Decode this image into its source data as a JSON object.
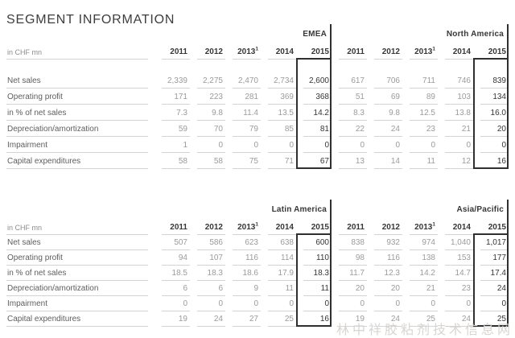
{
  "page_title": "SEGMENT INFORMATION",
  "unit_label": "in CHF mn",
  "years": [
    "2011",
    "2012",
    "2013",
    "2014",
    "2015"
  ],
  "footnote_year": "2013",
  "footnote_marker": "1",
  "highlighted_year": "2015",
  "row_labels": [
    "Net sales",
    "Operating profit",
    "in % of net sales",
    "Depreciation/amortization",
    "Impairment",
    "Capital expenditures"
  ],
  "tables": [
    {
      "halves": [
        {
          "region": "EMEA",
          "rows": [
            [
              "2,339",
              "2,275",
              "2,470",
              "2,734",
              "2,600"
            ],
            [
              "171",
              "223",
              "281",
              "369",
              "368"
            ],
            [
              "7.3",
              "9.8",
              "11.4",
              "13.5",
              "14.2"
            ],
            [
              "59",
              "70",
              "79",
              "85",
              "81"
            ],
            [
              "1",
              "0",
              "0",
              "0",
              "0"
            ],
            [
              "58",
              "58",
              "75",
              "71",
              "67"
            ]
          ]
        },
        {
          "region": "North America",
          "rows": [
            [
              "617",
              "706",
              "711",
              "746",
              "839"
            ],
            [
              "51",
              "69",
              "89",
              "103",
              "134"
            ],
            [
              "8.3",
              "9.8",
              "12.5",
              "13.8",
              "16.0"
            ],
            [
              "22",
              "24",
              "23",
              "21",
              "20"
            ],
            [
              "0",
              "0",
              "0",
              "0",
              "0"
            ],
            [
              "13",
              "14",
              "11",
              "12",
              "16"
            ]
          ]
        }
      ]
    },
    {
      "halves": [
        {
          "region": "Latin America",
          "rows": [
            [
              "507",
              "586",
              "623",
              "638",
              "600"
            ],
            [
              "94",
              "107",
              "116",
              "114",
              "110"
            ],
            [
              "18.5",
              "18.3",
              "18.6",
              "17.9",
              "18.3"
            ],
            [
              "6",
              "6",
              "9",
              "11",
              "11"
            ],
            [
              "0",
              "0",
              "0",
              "0",
              "0"
            ],
            [
              "19",
              "24",
              "27",
              "25",
              "16"
            ]
          ]
        },
        {
          "region": "Asia/Pacific",
          "rows": [
            [
              "838",
              "932",
              "974",
              "1,040",
              "1,017"
            ],
            [
              "98",
              "116",
              "138",
              "153",
              "177"
            ],
            [
              "11.7",
              "12.3",
              "14.2",
              "14.7",
              "17.4"
            ],
            [
              "20",
              "20",
              "21",
              "23",
              "24"
            ],
            [
              "0",
              "0",
              "0",
              "0",
              "0"
            ],
            [
              "19",
              "24",
              "25",
              "24",
              "25"
            ]
          ]
        }
      ]
    }
  ],
  "watermark": "林中祥胶粘剂技术信息网",
  "colors": {
    "title_text": "#3d3d3d",
    "header_text": "#373737",
    "row_label_text": "#5e5e5e",
    "value_text": "#9b9b9b",
    "highlight_value_text": "#353535",
    "rule_line": "#d3d3d3",
    "highlight_box": "#2f2f2f",
    "watermark_text": "#d7d4d1",
    "background": "#ffffff"
  }
}
